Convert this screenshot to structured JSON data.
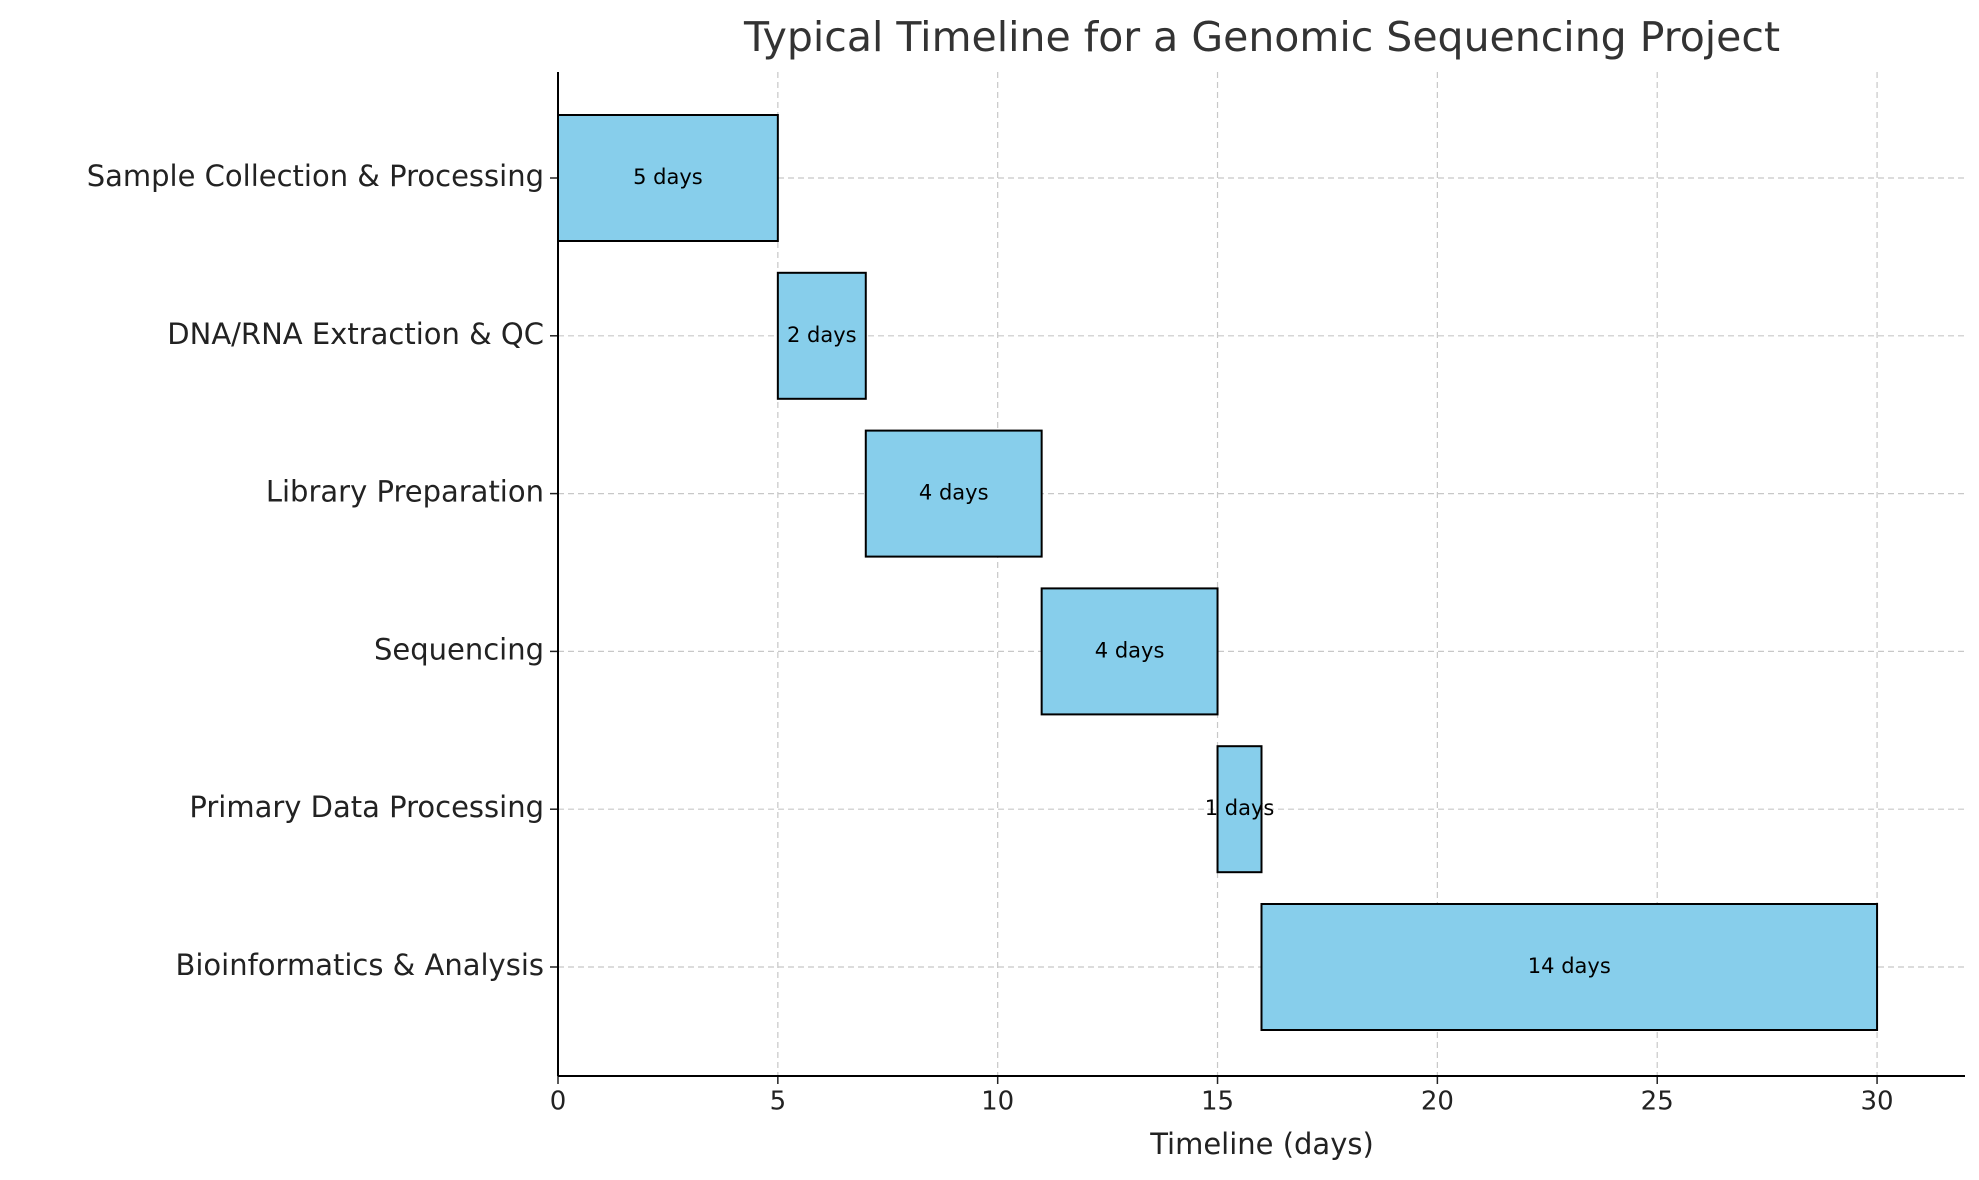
{
  "chart_data": {
    "type": "gantt",
    "title": "Typical Timeline for a Genomic Sequencing Project",
    "x_label": "Timeline (days)",
    "categories": [
      "Sample Collection & Processing",
      "DNA/RNA Extraction & QC",
      "Library Preparation",
      "Sequencing",
      "Primary Data Processing",
      "Bioinformatics & Analysis"
    ],
    "starts": [
      0,
      5,
      7,
      11,
      15,
      16
    ],
    "values": [
      5,
      2,
      4,
      4,
      1,
      14
    ],
    "value_labels": [
      "5 days",
      "2 days",
      "4 days",
      "4 days",
      "1 days",
      "14 days"
    ],
    "color": "#87ceeb",
    "xlim": [
      0,
      32
    ],
    "xticks": [
      0,
      5,
      10,
      15,
      20,
      25,
      30
    ],
    "grid": true
  }
}
